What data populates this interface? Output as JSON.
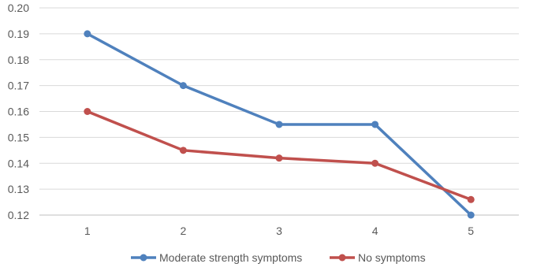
{
  "chart_data": {
    "type": "line",
    "title": "",
    "xlabel": "",
    "ylabel": "",
    "x": [
      1,
      2,
      3,
      4,
      5
    ],
    "x_tick_labels": [
      "1",
      "2",
      "3",
      "4",
      "5"
    ],
    "ylim": [
      0.12,
      0.2
    ],
    "y_ticks": [
      0.12,
      0.13,
      0.14,
      0.15,
      0.16,
      0.17,
      0.18,
      0.19,
      0.2
    ],
    "y_tick_labels": [
      "0.12",
      "0.13",
      "0.14",
      "0.15",
      "0.16",
      "0.17",
      "0.18",
      "0.19",
      "0.20"
    ],
    "grid": true,
    "legend_position": "bottom",
    "series": [
      {
        "name": "Moderate strength symptoms",
        "color": "#4f81bd",
        "values": [
          0.19,
          0.17,
          0.155,
          0.155,
          0.12
        ]
      },
      {
        "name": "No symptoms",
        "color": "#c0504d",
        "values": [
          0.16,
          0.145,
          0.142,
          0.14,
          0.126
        ]
      }
    ]
  }
}
